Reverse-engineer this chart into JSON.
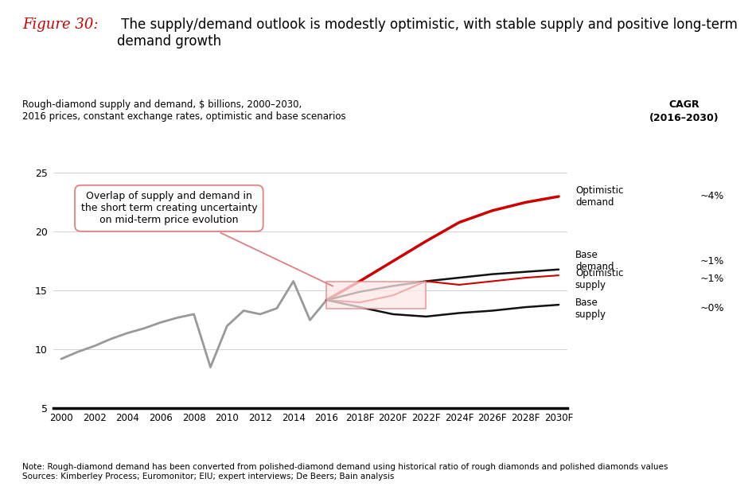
{
  "title_red": "Figure 30:",
  "title_black": " The supply/demand outlook is modestly optimistic, with stable supply and positive long-term\ndemand growth",
  "subtitle": "Rough-diamond supply and demand, $ billions, 2000–2030,\n2016 prices, constant exchange rates, optimistic and base scenarios",
  "cagr_label": "CAGR\n(2016–2030)",
  "note": "Note: Rough-diamond demand has been converted from polished-diamond demand using historical ratio of rough diamonds and polished diamonds values\nSources: Kimberley Process; Euromonitor; EIU; expert interviews; De Beers; Bain analysis",
  "historical_x": [
    2000,
    2001,
    2002,
    2003,
    2004,
    2005,
    2006,
    2007,
    2008,
    2009,
    2010,
    2011,
    2012,
    2013,
    2014,
    2015,
    2016
  ],
  "historical_y": [
    9.2,
    9.8,
    10.3,
    10.9,
    11.4,
    11.8,
    12.3,
    12.7,
    13.0,
    8.5,
    12.0,
    13.3,
    13.0,
    13.5,
    15.8,
    12.5,
    14.2
  ],
  "optimistic_demand_x": [
    2016,
    2018,
    2020,
    2022,
    2024,
    2026,
    2028,
    2030
  ],
  "optimistic_demand_y": [
    14.2,
    15.8,
    17.5,
    19.2,
    20.8,
    21.8,
    22.5,
    23.0
  ],
  "base_demand_x": [
    2016,
    2018,
    2020,
    2022,
    2024,
    2026,
    2028,
    2030
  ],
  "base_demand_y": [
    14.2,
    14.9,
    15.4,
    15.8,
    16.1,
    16.4,
    16.6,
    16.8
  ],
  "optimistic_supply_x": [
    2016,
    2018,
    2020,
    2022,
    2024,
    2026,
    2028,
    2030
  ],
  "optimistic_supply_y": [
    14.2,
    14.0,
    14.6,
    15.8,
    15.5,
    15.8,
    16.1,
    16.3
  ],
  "base_supply_x": [
    2016,
    2018,
    2020,
    2022,
    2024,
    2026,
    2028,
    2030
  ],
  "base_supply_y": [
    14.2,
    13.6,
    13.0,
    12.8,
    13.1,
    13.3,
    13.6,
    13.8
  ],
  "xlim": [
    1999.5,
    2030.5
  ],
  "ylim": [
    5,
    27
  ],
  "yticks": [
    5,
    10,
    15,
    20,
    25
  ],
  "background_color": "#ffffff",
  "historical_color": "#999999",
  "optimistic_demand_color": "#cc0000",
  "base_demand_color": "#111111",
  "optimistic_supply_color": "#cc0000",
  "base_supply_color": "#111111",
  "annotation_box_text": "Overlap of supply and demand in\nthe short term creating uncertainty\non mid-term price evolution",
  "annotation_rect_color": "#f0a0a0",
  "cagr_optimistic_demand": "~4%",
  "cagr_base_demand": "~1%",
  "cagr_optimistic_supply": "~1%",
  "cagr_base_supply": "~0%"
}
